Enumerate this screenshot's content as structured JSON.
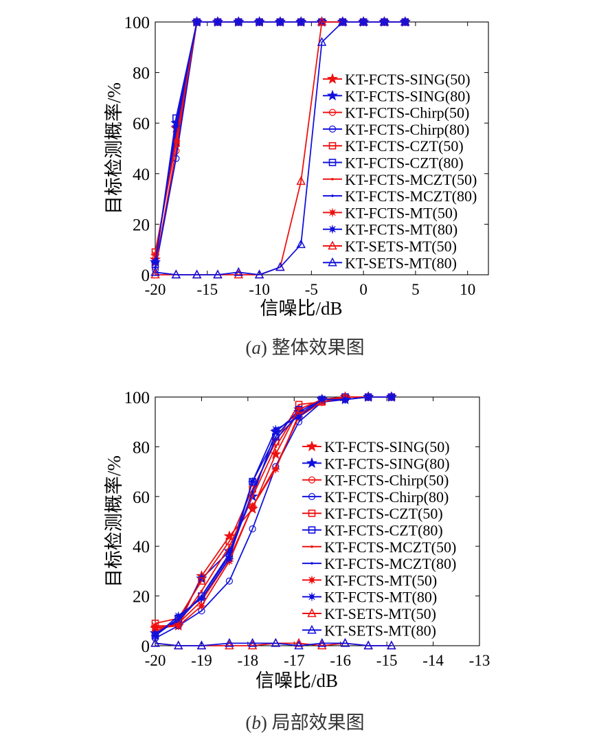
{
  "colors": {
    "red": "#ee1111",
    "blue": "#1111dd",
    "axis": "#000000"
  },
  "captions": [
    {
      "prefix": "(",
      "letter": "a",
      "suffix": ")",
      "text": "整体效果图"
    },
    {
      "prefix": "(",
      "letter": "b",
      "suffix": ")",
      "text": "局部效果图"
    }
  ],
  "chart_data": [
    {
      "type": "line",
      "title": "",
      "xlabel": "信噪比/dB",
      "ylabel": "目标检测概率/%",
      "xlim": [
        -20,
        12
      ],
      "ylim": [
        0,
        100
      ],
      "xticks": [
        -20,
        -15,
        -10,
        -5,
        0,
        5,
        10
      ],
      "xticklabels": [
        "-20",
        "-15",
        "-10",
        "-5",
        "0",
        "5",
        "10"
      ],
      "yticks": [
        0,
        20,
        40,
        60,
        80,
        100
      ],
      "yticklabels": [
        "0",
        "20",
        "40",
        "60",
        "80",
        "100"
      ],
      "legend_position": "right",
      "series": [
        {
          "name": "KT-FCTS-SING(50)",
          "color": "#ee1111",
          "marker": "star",
          "x": [
            -20,
            -18,
            -16,
            -14,
            -12,
            -10,
            -8,
            -6,
            -4,
            -2,
            0,
            2,
            4
          ],
          "y": [
            6,
            58,
            100,
            100,
            100,
            100,
            100,
            100,
            100,
            100,
            100,
            100,
            100
          ]
        },
        {
          "name": "KT-FCTS-SING(80)",
          "color": "#1111dd",
          "marker": "star",
          "x": [
            -20,
            -18,
            -16,
            -14,
            -12,
            -10,
            -8,
            -6,
            -4,
            -2,
            0,
            2,
            4
          ],
          "y": [
            5,
            60,
            100,
            100,
            100,
            100,
            100,
            100,
            100,
            100,
            100,
            100,
            100
          ]
        },
        {
          "name": "KT-FCTS-Chirp(50)",
          "color": "#ee1111",
          "marker": "circle",
          "x": [
            -20,
            -18,
            -16,
            -14,
            -12,
            -10,
            -8,
            -6,
            -4,
            -2,
            0,
            2,
            4
          ],
          "y": [
            3,
            49,
            100,
            100,
            100,
            100,
            100,
            100,
            100,
            100,
            100,
            100,
            100
          ]
        },
        {
          "name": "KT-FCTS-Chirp(80)",
          "color": "#1111dd",
          "marker": "circle",
          "x": [
            -20,
            -18,
            -16,
            -14,
            -12,
            -10,
            -8,
            -6,
            -4,
            -2,
            0,
            2,
            4
          ],
          "y": [
            2,
            46,
            100,
            100,
            100,
            100,
            100,
            100,
            100,
            100,
            100,
            100,
            100
          ]
        },
        {
          "name": "KT-FCTS-CZT(50)",
          "color": "#ee1111",
          "marker": "square",
          "x": [
            -20,
            -18,
            -16,
            -14,
            -12,
            -10,
            -8,
            -6,
            -4,
            -2,
            0,
            2,
            4
          ],
          "y": [
            9,
            52,
            100,
            100,
            100,
            100,
            100,
            100,
            100,
            100,
            100,
            100,
            100
          ]
        },
        {
          "name": "KT-FCTS-CZT(80)",
          "color": "#1111dd",
          "marker": "square",
          "x": [
            -20,
            -18,
            -16,
            -14,
            -12,
            -10,
            -8,
            -6,
            -4,
            -2,
            0,
            2,
            4
          ],
          "y": [
            4,
            62,
            100,
            100,
            100,
            100,
            100,
            100,
            100,
            100,
            100,
            100,
            100
          ]
        },
        {
          "name": "KT-FCTS-MCZT(50)",
          "color": "#ee1111",
          "marker": "dot",
          "x": [
            -20,
            -18,
            -16,
            -14,
            -12,
            -10,
            -8,
            -6,
            -4,
            -2,
            0,
            2,
            4
          ],
          "y": [
            7,
            55,
            100,
            100,
            100,
            100,
            100,
            100,
            100,
            100,
            100,
            100,
            100
          ]
        },
        {
          "name": "KT-FCTS-MCZT(80)",
          "color": "#1111dd",
          "marker": "dot",
          "x": [
            -20,
            -18,
            -16,
            -14,
            -12,
            -10,
            -8,
            -6,
            -4,
            -2,
            0,
            2,
            4
          ],
          "y": [
            6,
            57,
            100,
            100,
            100,
            100,
            100,
            100,
            100,
            100,
            100,
            100,
            100
          ]
        },
        {
          "name": "KT-FCTS-MT(50)",
          "color": "#ee1111",
          "marker": "asterisk",
          "x": [
            -20,
            -18,
            -16,
            -14,
            -12,
            -10,
            -8,
            -6,
            -4,
            -2,
            0,
            2,
            4
          ],
          "y": [
            8,
            53,
            100,
            100,
            100,
            100,
            100,
            100,
            100,
            100,
            100,
            100,
            100
          ]
        },
        {
          "name": "KT-FCTS-MT(80)",
          "color": "#1111dd",
          "marker": "asterisk",
          "x": [
            -20,
            -18,
            -16,
            -14,
            -12,
            -10,
            -8,
            -6,
            -4,
            -2,
            0,
            2,
            4
          ],
          "y": [
            5,
            59,
            100,
            100,
            100,
            100,
            100,
            100,
            100,
            100,
            100,
            100,
            100
          ]
        },
        {
          "name": "KT-SETS-MT(50)",
          "color": "#ee1111",
          "marker": "triangle",
          "x": [
            -20,
            -18,
            -16,
            -14,
            -12,
            -10,
            -8,
            -6,
            -4,
            -2,
            0,
            2,
            4
          ],
          "y": [
            0,
            0,
            0,
            0,
            0,
            0,
            3,
            37,
            100,
            100,
            100,
            100,
            100
          ]
        },
        {
          "name": "KT-SETS-MT(80)",
          "color": "#1111dd",
          "marker": "triangle",
          "x": [
            -20,
            -18,
            -16,
            -14,
            -12,
            -10,
            -8,
            -6,
            -4,
            -2,
            0,
            2,
            4
          ],
          "y": [
            1,
            0,
            0,
            0,
            1,
            0,
            3,
            12,
            92,
            100,
            100,
            100,
            100
          ]
        }
      ]
    },
    {
      "type": "line",
      "title": "",
      "xlabel": "信噪比/dB",
      "ylabel": "目标检测概率/%",
      "xlim": [
        -20,
        -13
      ],
      "ylim": [
        0,
        100
      ],
      "xticks": [
        -20,
        -19,
        -18,
        -17,
        -16,
        -15,
        -14,
        -13
      ],
      "xticklabels": [
        "-20",
        "-19",
        "-18",
        "-17",
        "-16",
        "-15",
        "-14",
        "-13"
      ],
      "yticks": [
        0,
        20,
        40,
        60,
        80,
        100
      ],
      "yticklabels": [
        "0",
        "20",
        "40",
        "60",
        "80",
        "100"
      ],
      "legend_position": "right",
      "series": [
        {
          "name": "KT-FCTS-SING(50)",
          "color": "#ee1111",
          "marker": "star",
          "x": [
            -20,
            -19.5,
            -19,
            -18.4,
            -17.9,
            -17.4,
            -16.9,
            -16.4,
            -15.9,
            -15.4,
            -14.9
          ],
          "y": [
            7,
            8,
            28,
            44,
            55,
            77,
            95,
            99,
            100,
            100,
            100
          ]
        },
        {
          "name": "KT-FCTS-SING(80)",
          "color": "#1111dd",
          "marker": "star",
          "x": [
            -20,
            -19.5,
            -19,
            -18.4,
            -17.9,
            -17.4,
            -16.9,
            -16.4,
            -15.9,
            -15.4,
            -14.9
          ],
          "y": [
            5,
            10,
            27,
            38,
            60,
            86,
            94,
            99,
            99,
            100,
            100
          ]
        },
        {
          "name": "KT-FCTS-Chirp(50)",
          "color": "#ee1111",
          "marker": "circle",
          "x": [
            -20,
            -19.5,
            -19,
            -18.4,
            -17.9,
            -17.4,
            -16.9,
            -16.4,
            -15.9,
            -15.4,
            -14.9
          ],
          "y": [
            6,
            9,
            18,
            35,
            56,
            72,
            92,
            98,
            99,
            100,
            100
          ]
        },
        {
          "name": "KT-FCTS-Chirp(80)",
          "color": "#1111dd",
          "marker": "circle",
          "x": [
            -20,
            -19.5,
            -19,
            -18.4,
            -17.9,
            -17.4,
            -16.9,
            -16.4,
            -15.9,
            -15.4,
            -14.9
          ],
          "y": [
            3,
            8,
            14,
            26,
            47,
            72,
            90,
            98,
            99,
            100,
            100
          ]
        },
        {
          "name": "KT-FCTS-CZT(50)",
          "color": "#ee1111",
          "marker": "square",
          "x": [
            -20,
            -19.5,
            -19,
            -18.4,
            -17.9,
            -17.4,
            -16.9,
            -16.4,
            -15.9,
            -15.4,
            -14.9
          ],
          "y": [
            9,
            11,
            26,
            42,
            63,
            82,
            97,
            98,
            100,
            100,
            100
          ]
        },
        {
          "name": "KT-FCTS-CZT(80)",
          "color": "#1111dd",
          "marker": "square",
          "x": [
            -20,
            -19.5,
            -19,
            -18.4,
            -17.9,
            -17.4,
            -16.9,
            -16.4,
            -15.9,
            -15.4,
            -14.9
          ],
          "y": [
            4,
            11,
            20,
            37,
            66,
            84,
            95,
            99,
            100,
            100,
            100
          ]
        },
        {
          "name": "KT-FCTS-MCZT(50)",
          "color": "#ee1111",
          "marker": "dot",
          "x": [
            -20,
            -19.5,
            -19,
            -18.4,
            -17.9,
            -17.4,
            -16.9,
            -16.4,
            -15.9,
            -15.4,
            -14.9
          ],
          "y": [
            7,
            9,
            22,
            40,
            60,
            80,
            95,
            99,
            100,
            100,
            100
          ]
        },
        {
          "name": "KT-FCTS-MCZT(80)",
          "color": "#1111dd",
          "marker": "dot",
          "x": [
            -20,
            -19.5,
            -19,
            -18.4,
            -17.9,
            -17.4,
            -16.9,
            -16.4,
            -15.9,
            -15.4,
            -14.9
          ],
          "y": [
            5,
            10,
            20,
            36,
            62,
            83,
            93,
            99,
            99,
            100,
            100
          ]
        },
        {
          "name": "KT-FCTS-MT(50)",
          "color": "#ee1111",
          "marker": "asterisk",
          "x": [
            -20,
            -19.5,
            -19,
            -18.4,
            -17.9,
            -17.4,
            -16.9,
            -16.4,
            -15.9,
            -15.4,
            -14.9
          ],
          "y": [
            8,
            8,
            16,
            34,
            56,
            71,
            93,
            98,
            100,
            100,
            100
          ]
        },
        {
          "name": "KT-FCTS-MT(80)",
          "color": "#1111dd",
          "marker": "asterisk",
          "x": [
            -20,
            -19.5,
            -19,
            -18.4,
            -17.9,
            -17.4,
            -16.9,
            -16.4,
            -15.9,
            -15.4,
            -14.9
          ],
          "y": [
            4,
            12,
            19,
            35,
            66,
            87,
            92,
            99,
            99,
            100,
            100
          ]
        },
        {
          "name": "KT-SETS-MT(50)",
          "color": "#ee1111",
          "marker": "triangle",
          "x": [
            -20,
            -19.5,
            -19,
            -18.4,
            -17.9,
            -17.4,
            -16.9,
            -16.4,
            -15.9,
            -15.4,
            -14.9
          ],
          "y": [
            1,
            0,
            0,
            0,
            0,
            1,
            1,
            0,
            1,
            0,
            0
          ]
        },
        {
          "name": "KT-SETS-MT(80)",
          "color": "#1111dd",
          "marker": "triangle",
          "x": [
            -20,
            -19.5,
            -19,
            -18.4,
            -17.9,
            -17.4,
            -16.9,
            -16.4,
            -15.9,
            -15.4,
            -14.9
          ],
          "y": [
            1,
            0,
            0,
            1,
            1,
            1,
            0,
            1,
            1,
            0,
            0
          ]
        }
      ]
    }
  ]
}
